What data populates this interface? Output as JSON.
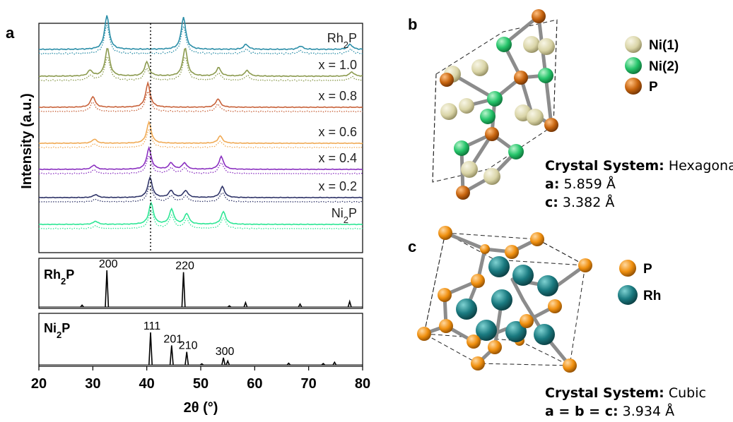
{
  "panels": {
    "a": "a",
    "b": "b",
    "c": "c"
  },
  "chart_data": {
    "type": "line",
    "ylabel": "Intensity (a.u.)",
    "xlabel": "2θ (°)",
    "xlim": [
      20,
      80
    ],
    "x_ticks": [
      "20",
      "30",
      "40",
      "50",
      "60",
      "70",
      "80"
    ],
    "reference_line_x": 40.7,
    "stacked_series": [
      {
        "name": "Rh",
        "sub": "2",
        "suffix": "P",
        "color": "#2b8ea8",
        "peaks": [
          [
            32.6,
            1.0
          ],
          [
            46.8,
            0.95
          ],
          [
            58.4,
            0.15
          ],
          [
            68.5,
            0.1
          ],
          [
            77.7,
            0.15
          ]
        ]
      },
      {
        "name": "x = 1.0",
        "sub": "",
        "suffix": "",
        "color": "#8b9a4e",
        "peaks": [
          [
            29.5,
            0.2
          ],
          [
            32.7,
            1.0
          ],
          [
            40.0,
            0.5
          ],
          [
            47.1,
            1.0
          ],
          [
            53.3,
            0.3
          ],
          [
            58.6,
            0.2
          ],
          [
            78.0,
            0.15
          ]
        ]
      },
      {
        "name": "x = 0.8",
        "sub": "",
        "suffix": "",
        "color": "#c8623a",
        "peaks": [
          [
            30.0,
            0.45
          ],
          [
            40.2,
            1.0
          ],
          [
            53.2,
            0.35
          ]
        ]
      },
      {
        "name": "x = 0.6",
        "sub": "",
        "suffix": "",
        "color": "#f0aa55",
        "peaks": [
          [
            30.3,
            0.2
          ],
          [
            40.4,
            1.0
          ],
          [
            53.6,
            0.35
          ]
        ]
      },
      {
        "name": "x = 0.4",
        "sub": "",
        "suffix": "",
        "color": "#8a2fc0",
        "peaks": [
          [
            30.2,
            0.2
          ],
          [
            40.4,
            1.0
          ],
          [
            44.5,
            0.3
          ],
          [
            47.0,
            0.3
          ],
          [
            53.8,
            0.6
          ]
        ]
      },
      {
        "name": "x = 0.2",
        "sub": "",
        "suffix": "",
        "color": "#2f3468",
        "peaks": [
          [
            30.5,
            0.15
          ],
          [
            40.6,
            1.0
          ],
          [
            44.5,
            0.35
          ],
          [
            47.2,
            0.35
          ],
          [
            54.0,
            0.55
          ]
        ]
      },
      {
        "name": "Ni",
        "sub": "2",
        "suffix": "P",
        "color": "#2ee695",
        "peaks": [
          [
            30.5,
            0.15
          ],
          [
            40.8,
            1.0
          ],
          [
            44.6,
            0.7
          ],
          [
            47.4,
            0.5
          ],
          [
            54.2,
            0.6
          ]
        ]
      }
    ],
    "references": [
      {
        "name": "Rh",
        "sub": "2",
        "suffix": "P",
        "peaks": [
          [
            28.0,
            0.05
          ],
          [
            32.6,
            1.0
          ],
          [
            46.8,
            0.95
          ],
          [
            55.3,
            0.03
          ],
          [
            58.3,
            0.12
          ],
          [
            68.4,
            0.08
          ],
          [
            77.6,
            0.15
          ]
        ],
        "labels": [
          {
            "x": 32.6,
            "text": "200"
          },
          {
            "x": 46.8,
            "text": "220"
          }
        ]
      },
      {
        "name": "Ni",
        "sub": "2",
        "suffix": "P",
        "peaks": [
          [
            40.7,
            1.0
          ],
          [
            44.6,
            0.6
          ],
          [
            47.4,
            0.4
          ],
          [
            50.2,
            0.03
          ],
          [
            54.2,
            0.22
          ],
          [
            55.0,
            0.12
          ],
          [
            66.3,
            0.05
          ],
          [
            72.7,
            0.04
          ],
          [
            74.8,
            0.08
          ]
        ],
        "labels": [
          {
            "x": 40.7,
            "text": "111"
          },
          {
            "x": 44.6,
            "text": "201"
          },
          {
            "x": 47.4,
            "text": "210"
          },
          {
            "x": 54.2,
            "text": "300"
          }
        ]
      }
    ]
  },
  "hexagonal": {
    "legend": [
      {
        "label": "Ni(1)",
        "color": "#d9d4a6"
      },
      {
        "label": "Ni(2)",
        "color": "#25c46a"
      },
      {
        "label": "P",
        "color": "#c8650f"
      }
    ],
    "system_label": "Crystal System:",
    "system_value": "Hexagonal",
    "a_label": "a:",
    "a_value": "5.859 Å",
    "c_label": "c:",
    "c_value": "3.382 Å"
  },
  "cubic": {
    "legend": [
      {
        "label": "P",
        "color": "#f0900f"
      },
      {
        "label": "Rh",
        "color": "#1a7a80"
      }
    ],
    "system_label": "Crystal System:",
    "system_value": "Cubic",
    "abc_label": "a = b = c:",
    "abc_value": "3.934 Å"
  }
}
